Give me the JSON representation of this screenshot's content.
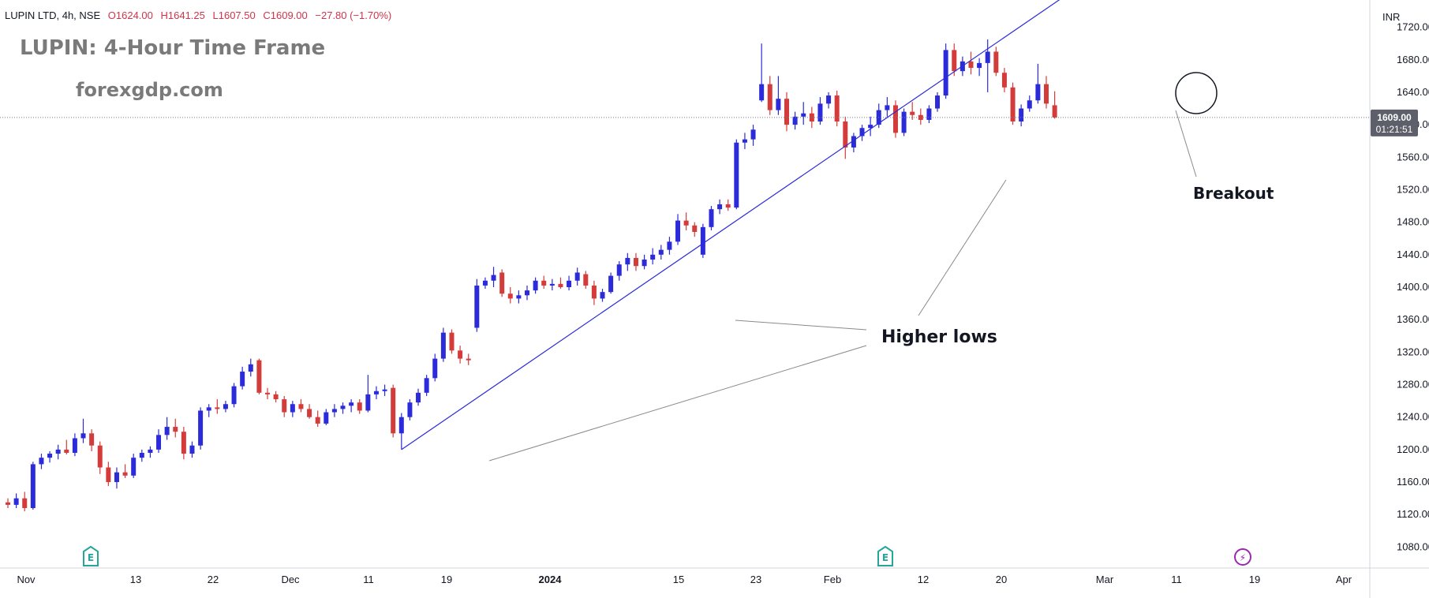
{
  "header": {
    "symbol": "LUPIN LTD, 4h, NSE",
    "open": "O1624.00",
    "high": "H1641.25",
    "low": "L1607.50",
    "close": "C1609.00",
    "change": "−27.80 (−1.70%)"
  },
  "overlay": {
    "title": "LUPIN: 4-Hour Time Frame",
    "site": "forexgdp.com"
  },
  "price_axis": {
    "currency": "INR",
    "ticks": [
      "1720.00",
      "1680.00",
      "1640.00",
      "1600.00",
      "1560.00",
      "1520.00",
      "1480.00",
      "1440.00",
      "1400.00",
      "1360.00",
      "1320.00",
      "1280.00",
      "1240.00",
      "1200.00",
      "1160.00",
      "1120.00",
      "1080.00"
    ],
    "last_price": "1609.00",
    "countdown": "01:21:51"
  },
  "time_axis": {
    "labels": [
      "Nov",
      "13",
      "22",
      "Dec",
      "11",
      "19",
      "2024",
      "15",
      "23",
      "Feb",
      "12",
      "20",
      "Mar",
      "11",
      "19",
      "Apr"
    ]
  },
  "annotations": {
    "higher_lows": "Higher lows",
    "breakout": "Breakout"
  },
  "markers": [
    {
      "label": "E",
      "kind": "earnings",
      "icon": "earnings-icon"
    },
    {
      "label": "E",
      "kind": "earnings",
      "icon": "earnings-icon"
    },
    {
      "label": "⚡",
      "kind": "event",
      "icon": "lightning-icon"
    }
  ],
  "colors": {
    "up": "#2b2bd9",
    "down": "#d43b3b",
    "trendline": "#2b2bd9",
    "label_bg": "#5d606b",
    "earnings": "#26a69a",
    "event": "#9c27b0"
  },
  "chart_data": {
    "type": "candlestick",
    "title": "",
    "y_range": [
      1060,
      1740
    ],
    "x_range": [
      "2023-10-31",
      "2024-04-03"
    ],
    "grid": false,
    "candles": [
      [
        "2023-10-31",
        1135,
        1140,
        1128,
        1132
      ],
      [
        "2023-11-01",
        1132,
        1146,
        1128,
        1140
      ],
      [
        "2023-11-02",
        1140,
        1148,
        1124,
        1128
      ],
      [
        "2023-11-03",
        1128,
        1185,
        1126,
        1182
      ],
      [
        "2023-11-04",
        1182,
        1195,
        1176,
        1190
      ],
      [
        "2023-11-05",
        1190,
        1198,
        1184,
        1195
      ],
      [
        "2023-11-06",
        1195,
        1206,
        1188,
        1200
      ],
      [
        "2023-11-07",
        1200,
        1212,
        1194,
        1196
      ],
      [
        "2023-11-08",
        1196,
        1220,
        1192,
        1214
      ],
      [
        "2023-11-09",
        1214,
        1238,
        1208,
        1220
      ],
      [
        "2023-11-10",
        1220,
        1225,
        1198,
        1205
      ],
      [
        "2023-11-11",
        1205,
        1210,
        1170,
        1178
      ],
      [
        "2023-11-12",
        1178,
        1185,
        1155,
        1160
      ],
      [
        "2023-11-13",
        1160,
        1178,
        1152,
        1172
      ],
      [
        "2023-11-14",
        1172,
        1182,
        1165,
        1168
      ],
      [
        "2023-11-15",
        1168,
        1195,
        1165,
        1190
      ],
      [
        "2023-11-16",
        1190,
        1200,
        1185,
        1196
      ],
      [
        "2023-11-17",
        1196,
        1204,
        1190,
        1200
      ],
      [
        "2023-11-18",
        1200,
        1225,
        1196,
        1218
      ],
      [
        "2023-11-19",
        1218,
        1240,
        1212,
        1228
      ],
      [
        "2023-11-20",
        1228,
        1238,
        1215,
        1222
      ],
      [
        "2023-11-21",
        1222,
        1228,
        1188,
        1195
      ],
      [
        "2023-11-22",
        1195,
        1210,
        1190,
        1205
      ],
      [
        "2023-11-23",
        1205,
        1252,
        1200,
        1248
      ],
      [
        "2023-11-24",
        1248,
        1256,
        1240,
        1252
      ],
      [
        "2023-11-25",
        1252,
        1262,
        1244,
        1250
      ],
      [
        "2023-11-26",
        1250,
        1260,
        1246,
        1256
      ],
      [
        "2023-11-27",
        1256,
        1282,
        1252,
        1278
      ],
      [
        "2023-11-28",
        1278,
        1302,
        1274,
        1296
      ],
      [
        "2023-11-29",
        1296,
        1312,
        1290,
        1305
      ],
      [
        "2023-11-30",
        1310,
        1312,
        1268,
        1270
      ],
      [
        "2023-12-01",
        1270,
        1276,
        1262,
        1268
      ],
      [
        "2023-12-02",
        1268,
        1272,
        1258,
        1262
      ],
      [
        "2023-12-03",
        1262,
        1266,
        1240,
        1246
      ],
      [
        "2023-12-04",
        1246,
        1260,
        1240,
        1256
      ],
      [
        "2023-12-05",
        1256,
        1262,
        1246,
        1250
      ],
      [
        "2023-12-06",
        1250,
        1256,
        1238,
        1240
      ],
      [
        "2023-12-07",
        1240,
        1248,
        1228,
        1232
      ],
      [
        "2023-12-08",
        1232,
        1250,
        1230,
        1246
      ],
      [
        "2023-12-09",
        1246,
        1256,
        1240,
        1250
      ],
      [
        "2023-12-10",
        1250,
        1258,
        1244,
        1254
      ],
      [
        "2023-12-11",
        1254,
        1262,
        1246,
        1258
      ],
      [
        "2023-12-12",
        1258,
        1262,
        1244,
        1248
      ],
      [
        "2023-12-13",
        1248,
        1292,
        1246,
        1268
      ],
      [
        "2023-12-14",
        1268,
        1278,
        1262,
        1272
      ],
      [
        "2023-12-15",
        1272,
        1280,
        1266,
        1274
      ],
      [
        "2023-12-16",
        1276,
        1280,
        1215,
        1220
      ],
      [
        "2023-12-17",
        1220,
        1245,
        1200,
        1240
      ],
      [
        "2023-12-18",
        1240,
        1262,
        1236,
        1258
      ],
      [
        "2023-12-19",
        1258,
        1275,
        1254,
        1270
      ],
      [
        "2023-12-20",
        1270,
        1292,
        1266,
        1288
      ],
      [
        "2023-12-21",
        1288,
        1318,
        1284,
        1312
      ],
      [
        "2023-12-22",
        1312,
        1350,
        1308,
        1344
      ],
      [
        "2023-12-23",
        1344,
        1348,
        1318,
        1322
      ],
      [
        "2023-12-24",
        1322,
        1328,
        1306,
        1312
      ],
      [
        "2023-12-25",
        1312,
        1318,
        1304,
        1310
      ],
      [
        "2023-12-26",
        1350,
        1410,
        1345,
        1402
      ],
      [
        "2023-12-27",
        1402,
        1412,
        1398,
        1408
      ],
      [
        "2023-12-28",
        1408,
        1425,
        1400,
        1415
      ],
      [
        "2023-12-29",
        1418,
        1422,
        1388,
        1392
      ],
      [
        "2023-12-30",
        1392,
        1400,
        1380,
        1386
      ],
      [
        "2023-12-31",
        1386,
        1396,
        1380,
        1390
      ],
      [
        "2024-01-01",
        1390,
        1402,
        1384,
        1396
      ],
      [
        "2024-01-02",
        1396,
        1412,
        1392,
        1408
      ],
      [
        "2024-01-03",
        1408,
        1414,
        1398,
        1402
      ],
      [
        "2024-01-04",
        1402,
        1410,
        1396,
        1404
      ],
      [
        "2024-01-05",
        1404,
        1412,
        1398,
        1400
      ],
      [
        "2024-01-06",
        1400,
        1414,
        1396,
        1408
      ],
      [
        "2024-01-07",
        1408,
        1424,
        1402,
        1418
      ],
      [
        "2024-01-08",
        1416,
        1420,
        1398,
        1402
      ],
      [
        "2024-01-09",
        1402,
        1408,
        1378,
        1386
      ],
      [
        "2024-01-10",
        1386,
        1398,
        1382,
        1394
      ],
      [
        "2024-01-11",
        1394,
        1418,
        1392,
        1414
      ],
      [
        "2024-01-12",
        1414,
        1432,
        1408,
        1428
      ],
      [
        "2024-01-13",
        1428,
        1442,
        1420,
        1436
      ],
      [
        "2024-01-14",
        1436,
        1442,
        1420,
        1426
      ],
      [
        "2024-01-15",
        1426,
        1440,
        1422,
        1434
      ],
      [
        "2024-01-16",
        1434,
        1448,
        1428,
        1440
      ],
      [
        "2024-01-17",
        1440,
        1452,
        1434,
        1446
      ],
      [
        "2024-01-18",
        1446,
        1462,
        1440,
        1456
      ],
      [
        "2024-01-19",
        1456,
        1490,
        1452,
        1482
      ],
      [
        "2024-01-20",
        1482,
        1492,
        1470,
        1476
      ],
      [
        "2024-01-21",
        1476,
        1480,
        1462,
        1468
      ],
      [
        "2024-01-22",
        1440,
        1478,
        1436,
        1474
      ],
      [
        "2024-01-23",
        1474,
        1500,
        1470,
        1496
      ],
      [
        "2024-01-24",
        1496,
        1508,
        1490,
        1502
      ],
      [
        "2024-01-25",
        1502,
        1508,
        1494,
        1498
      ],
      [
        "2024-01-26",
        1498,
        1582,
        1496,
        1578
      ],
      [
        "2024-01-27",
        1578,
        1590,
        1570,
        1582
      ],
      [
        "2024-01-28",
        1582,
        1600,
        1574,
        1594
      ],
      [
        "2024-01-29",
        1630,
        1700,
        1628,
        1650
      ],
      [
        "2024-01-30",
        1650,
        1660,
        1612,
        1618
      ],
      [
        "2024-01-31",
        1618,
        1660,
        1612,
        1632
      ],
      [
        "2024-02-01",
        1632,
        1640,
        1592,
        1600
      ],
      [
        "2024-02-02",
        1600,
        1616,
        1594,
        1610
      ],
      [
        "2024-02-03",
        1610,
        1628,
        1600,
        1614
      ],
      [
        "2024-02-04",
        1614,
        1622,
        1596,
        1604
      ],
      [
        "2024-02-05",
        1604,
        1634,
        1600,
        1626
      ],
      [
        "2024-02-06",
        1626,
        1640,
        1620,
        1636
      ],
      [
        "2024-02-07",
        1636,
        1642,
        1598,
        1604
      ],
      [
        "2024-02-08",
        1604,
        1610,
        1558,
        1572
      ],
      [
        "2024-02-09",
        1572,
        1590,
        1566,
        1586
      ],
      [
        "2024-02-10",
        1586,
        1600,
        1580,
        1596
      ],
      [
        "2024-02-11",
        1596,
        1610,
        1586,
        1600
      ],
      [
        "2024-02-12",
        1600,
        1626,
        1596,
        1618
      ],
      [
        "2024-02-13",
        1618,
        1634,
        1610,
        1624
      ],
      [
        "2024-02-14",
        1624,
        1630,
        1584,
        1590
      ],
      [
        "2024-02-15",
        1590,
        1620,
        1586,
        1616
      ],
      [
        "2024-02-16",
        1616,
        1628,
        1606,
        1612
      ],
      [
        "2024-02-17",
        1612,
        1620,
        1600,
        1606
      ],
      [
        "2024-02-18",
        1606,
        1624,
        1602,
        1620
      ],
      [
        "2024-02-19",
        1620,
        1640,
        1616,
        1636
      ],
      [
        "2024-02-20",
        1636,
        1700,
        1632,
        1692
      ],
      [
        "2024-02-21",
        1692,
        1700,
        1660,
        1666
      ],
      [
        "2024-02-22",
        1666,
        1684,
        1660,
        1678
      ],
      [
        "2024-02-23",
        1678,
        1690,
        1662,
        1670
      ],
      [
        "2024-02-24",
        1670,
        1682,
        1660,
        1676
      ],
      [
        "2024-02-25",
        1676,
        1705,
        1640,
        1690
      ],
      [
        "2024-02-26",
        1690,
        1696,
        1660,
        1664
      ],
      [
        "2024-02-27",
        1664,
        1670,
        1640,
        1646
      ],
      [
        "2024-02-28",
        1646,
        1652,
        1600,
        1604
      ],
      [
        "2024-02-29",
        1604,
        1625,
        1598,
        1620
      ],
      [
        "2024-03-01",
        1620,
        1636,
        1616,
        1630
      ],
      [
        "2024-03-02",
        1630,
        1675,
        1626,
        1650
      ],
      [
        "2024-03-03",
        1650,
        1660,
        1620,
        1626
      ],
      [
        "2024-03-04",
        1624,
        1641.25,
        1607.5,
        1609
      ]
    ],
    "trendline": {
      "from": [
        "2023-12-17",
        1200
      ],
      "to": [
        "2024-03-06",
        1764
      ]
    }
  }
}
